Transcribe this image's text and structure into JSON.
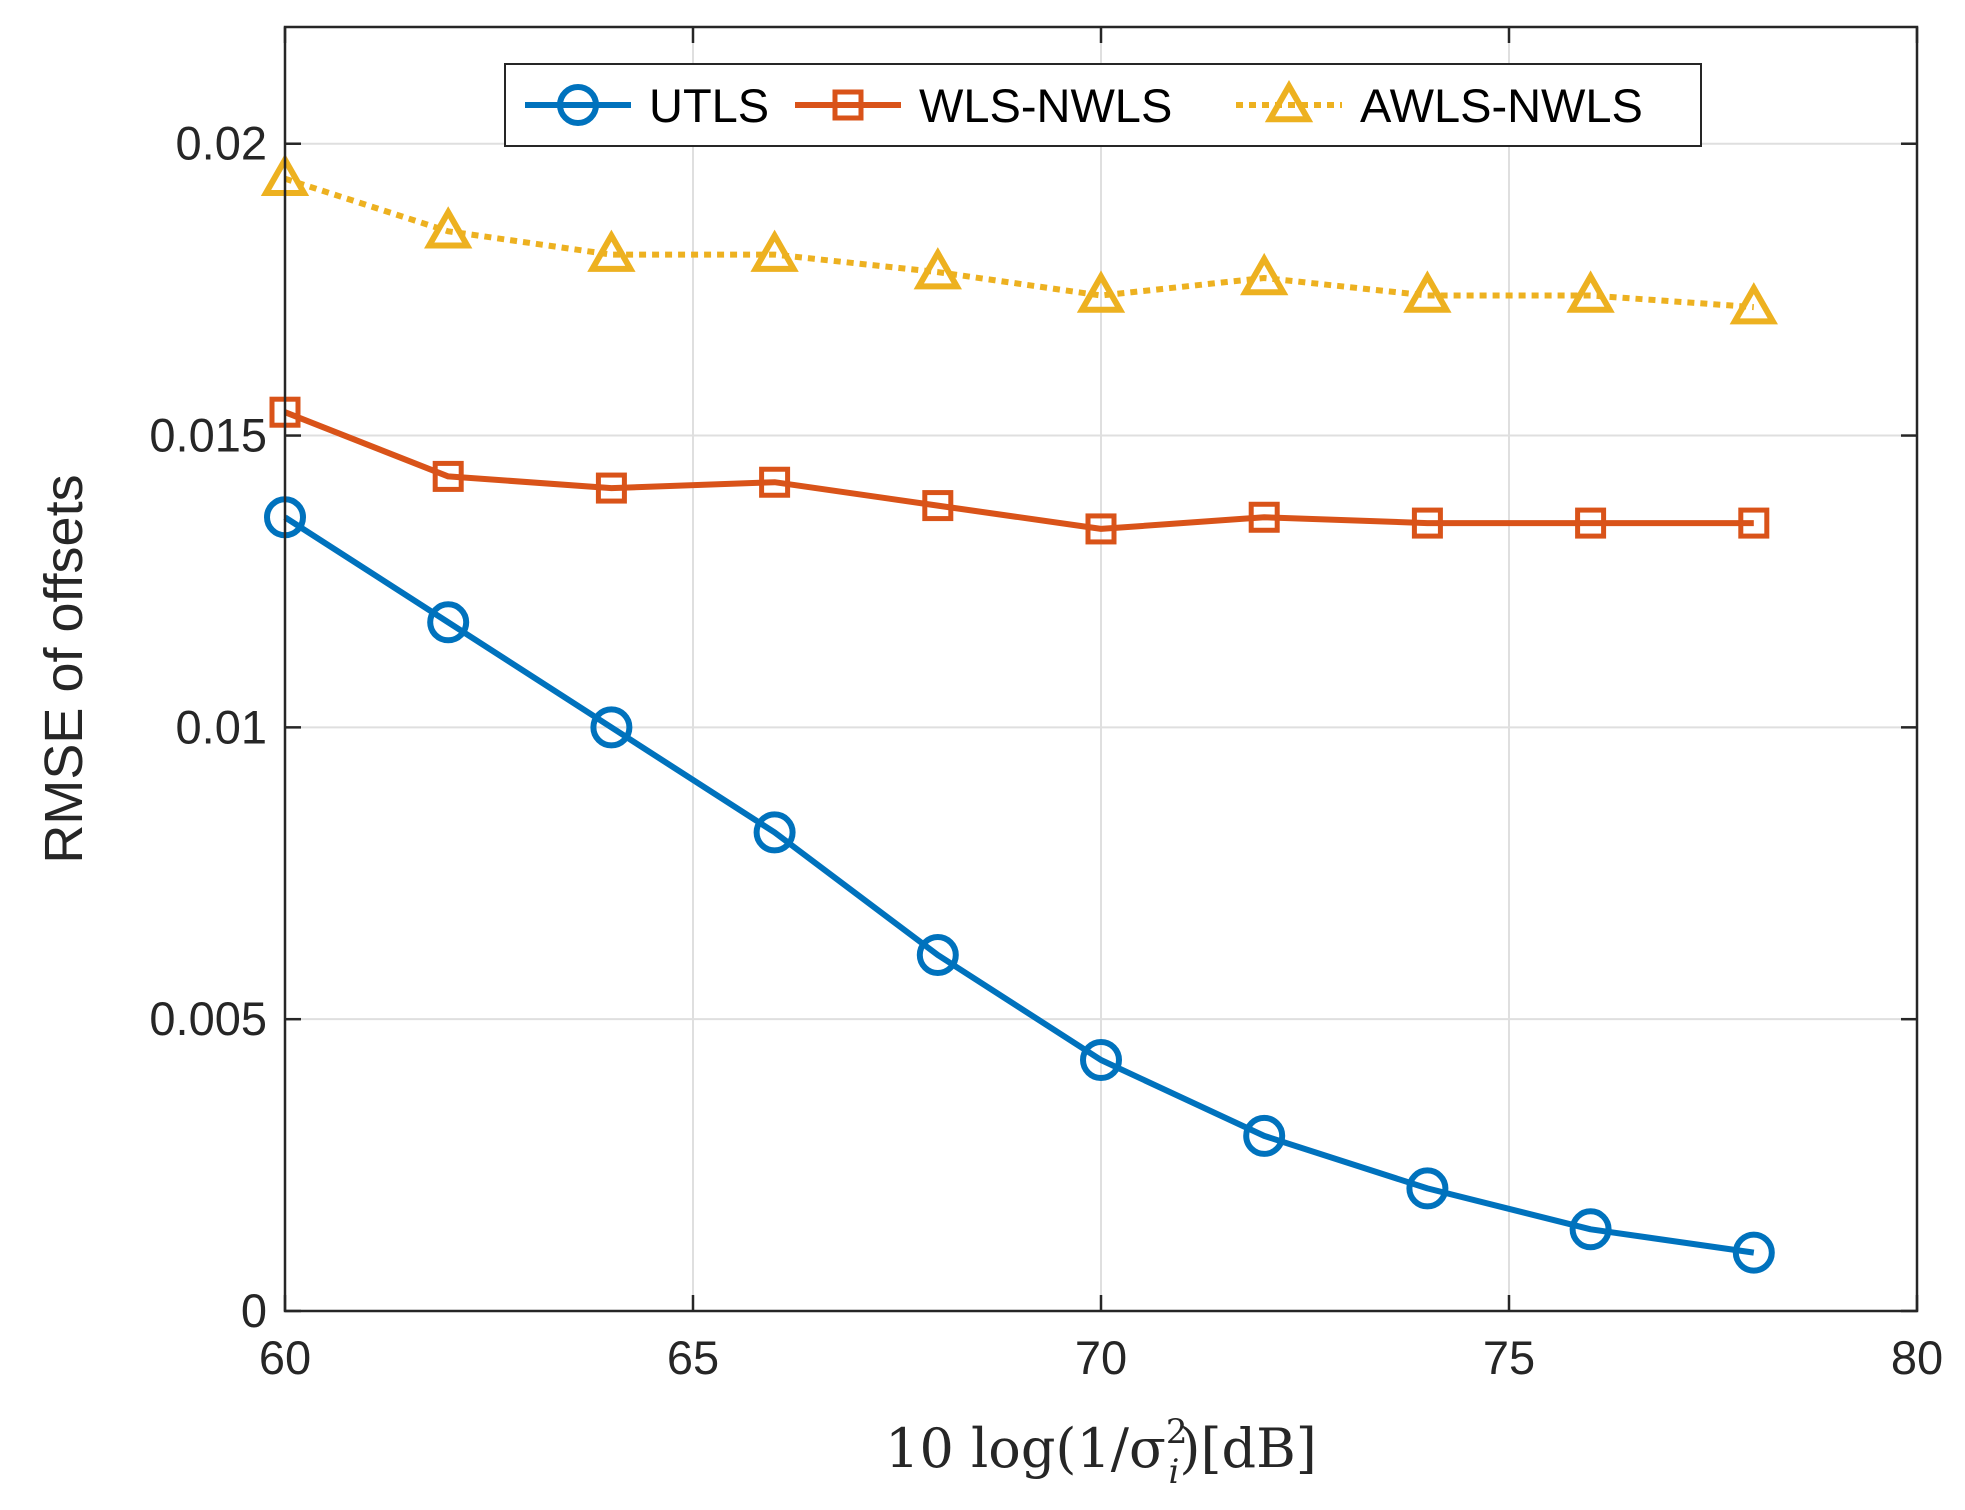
{
  "chart_data": {
    "type": "line",
    "title": "",
    "xlabel": "10 log(1/σ_i^2)[dB]",
    "xlabel_parts": {
      "lead": "10 log(1/σ",
      "sub": "i",
      "sup": "2",
      "tail": ")[dB]"
    },
    "ylabel": "RMSE of offsets",
    "xlim": [
      60,
      80
    ],
    "ylim": [
      0,
      0.022
    ],
    "xticks": [
      60,
      65,
      70,
      75,
      80
    ],
    "xtick_labels": [
      "60",
      "65",
      "70",
      "75",
      "80"
    ],
    "yticks": [
      0,
      0.005,
      0.01,
      0.015,
      0.02
    ],
    "ytick_labels": [
      "0",
      "0.005",
      "0.01",
      "0.015",
      "0.02"
    ],
    "grid": true,
    "legend_position": "top-center",
    "x": [
      60,
      62,
      64,
      66,
      68,
      70,
      72,
      74,
      76,
      78
    ],
    "series": [
      {
        "name": "UTLS",
        "color": "#0072BD",
        "marker": "circle",
        "line_style": "solid",
        "values": [
          0.0136,
          0.0118,
          0.01,
          0.0082,
          0.0061,
          0.0043,
          0.003,
          0.0021,
          0.0014,
          0.001
        ]
      },
      {
        "name": "WLS-NWLS",
        "color": "#D95319",
        "marker": "square",
        "line_style": "solid",
        "values": [
          0.0154,
          0.0143,
          0.0141,
          0.0142,
          0.0138,
          0.0134,
          0.0136,
          0.0135,
          0.0135,
          0.0135
        ]
      },
      {
        "name": "AWLS-NWLS",
        "color": "#EDB120",
        "marker": "triangle",
        "line_style": "dotted",
        "values": [
          0.0194,
          0.0185,
          0.0181,
          0.0181,
          0.0178,
          0.0174,
          0.0177,
          0.0174,
          0.0174,
          0.0172
        ]
      }
    ]
  }
}
